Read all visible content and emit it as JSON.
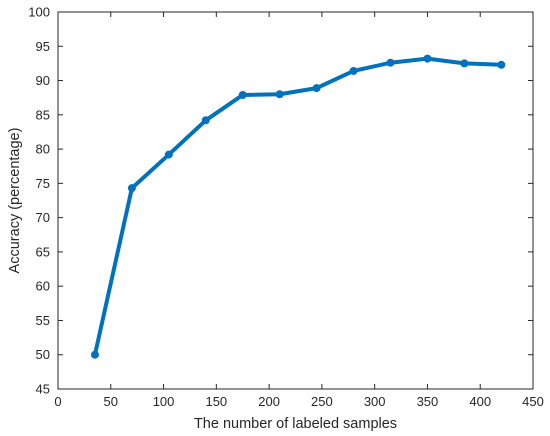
{
  "chart_data": {
    "type": "line",
    "title": "",
    "xlabel": "The number of labeled samples",
    "ylabel": "Accuracy (percentage)",
    "xlim": [
      0,
      450
    ],
    "ylim": [
      45,
      100
    ],
    "xticks": [
      0,
      50,
      100,
      150,
      200,
      250,
      300,
      350,
      400,
      450
    ],
    "yticks": [
      45,
      50,
      55,
      60,
      65,
      70,
      75,
      80,
      85,
      90,
      95,
      100
    ],
    "grid": false,
    "legend": "none",
    "series": [
      {
        "color": "#0072BD",
        "marker": "circle",
        "x": [
          35,
          70,
          105,
          140,
          175,
          210,
          245,
          280,
          315,
          350,
          385,
          420
        ],
        "y": [
          50.0,
          74.3,
          79.2,
          84.2,
          87.9,
          88.0,
          88.9,
          91.4,
          92.6,
          93.2,
          92.5,
          92.3
        ]
      }
    ]
  }
}
